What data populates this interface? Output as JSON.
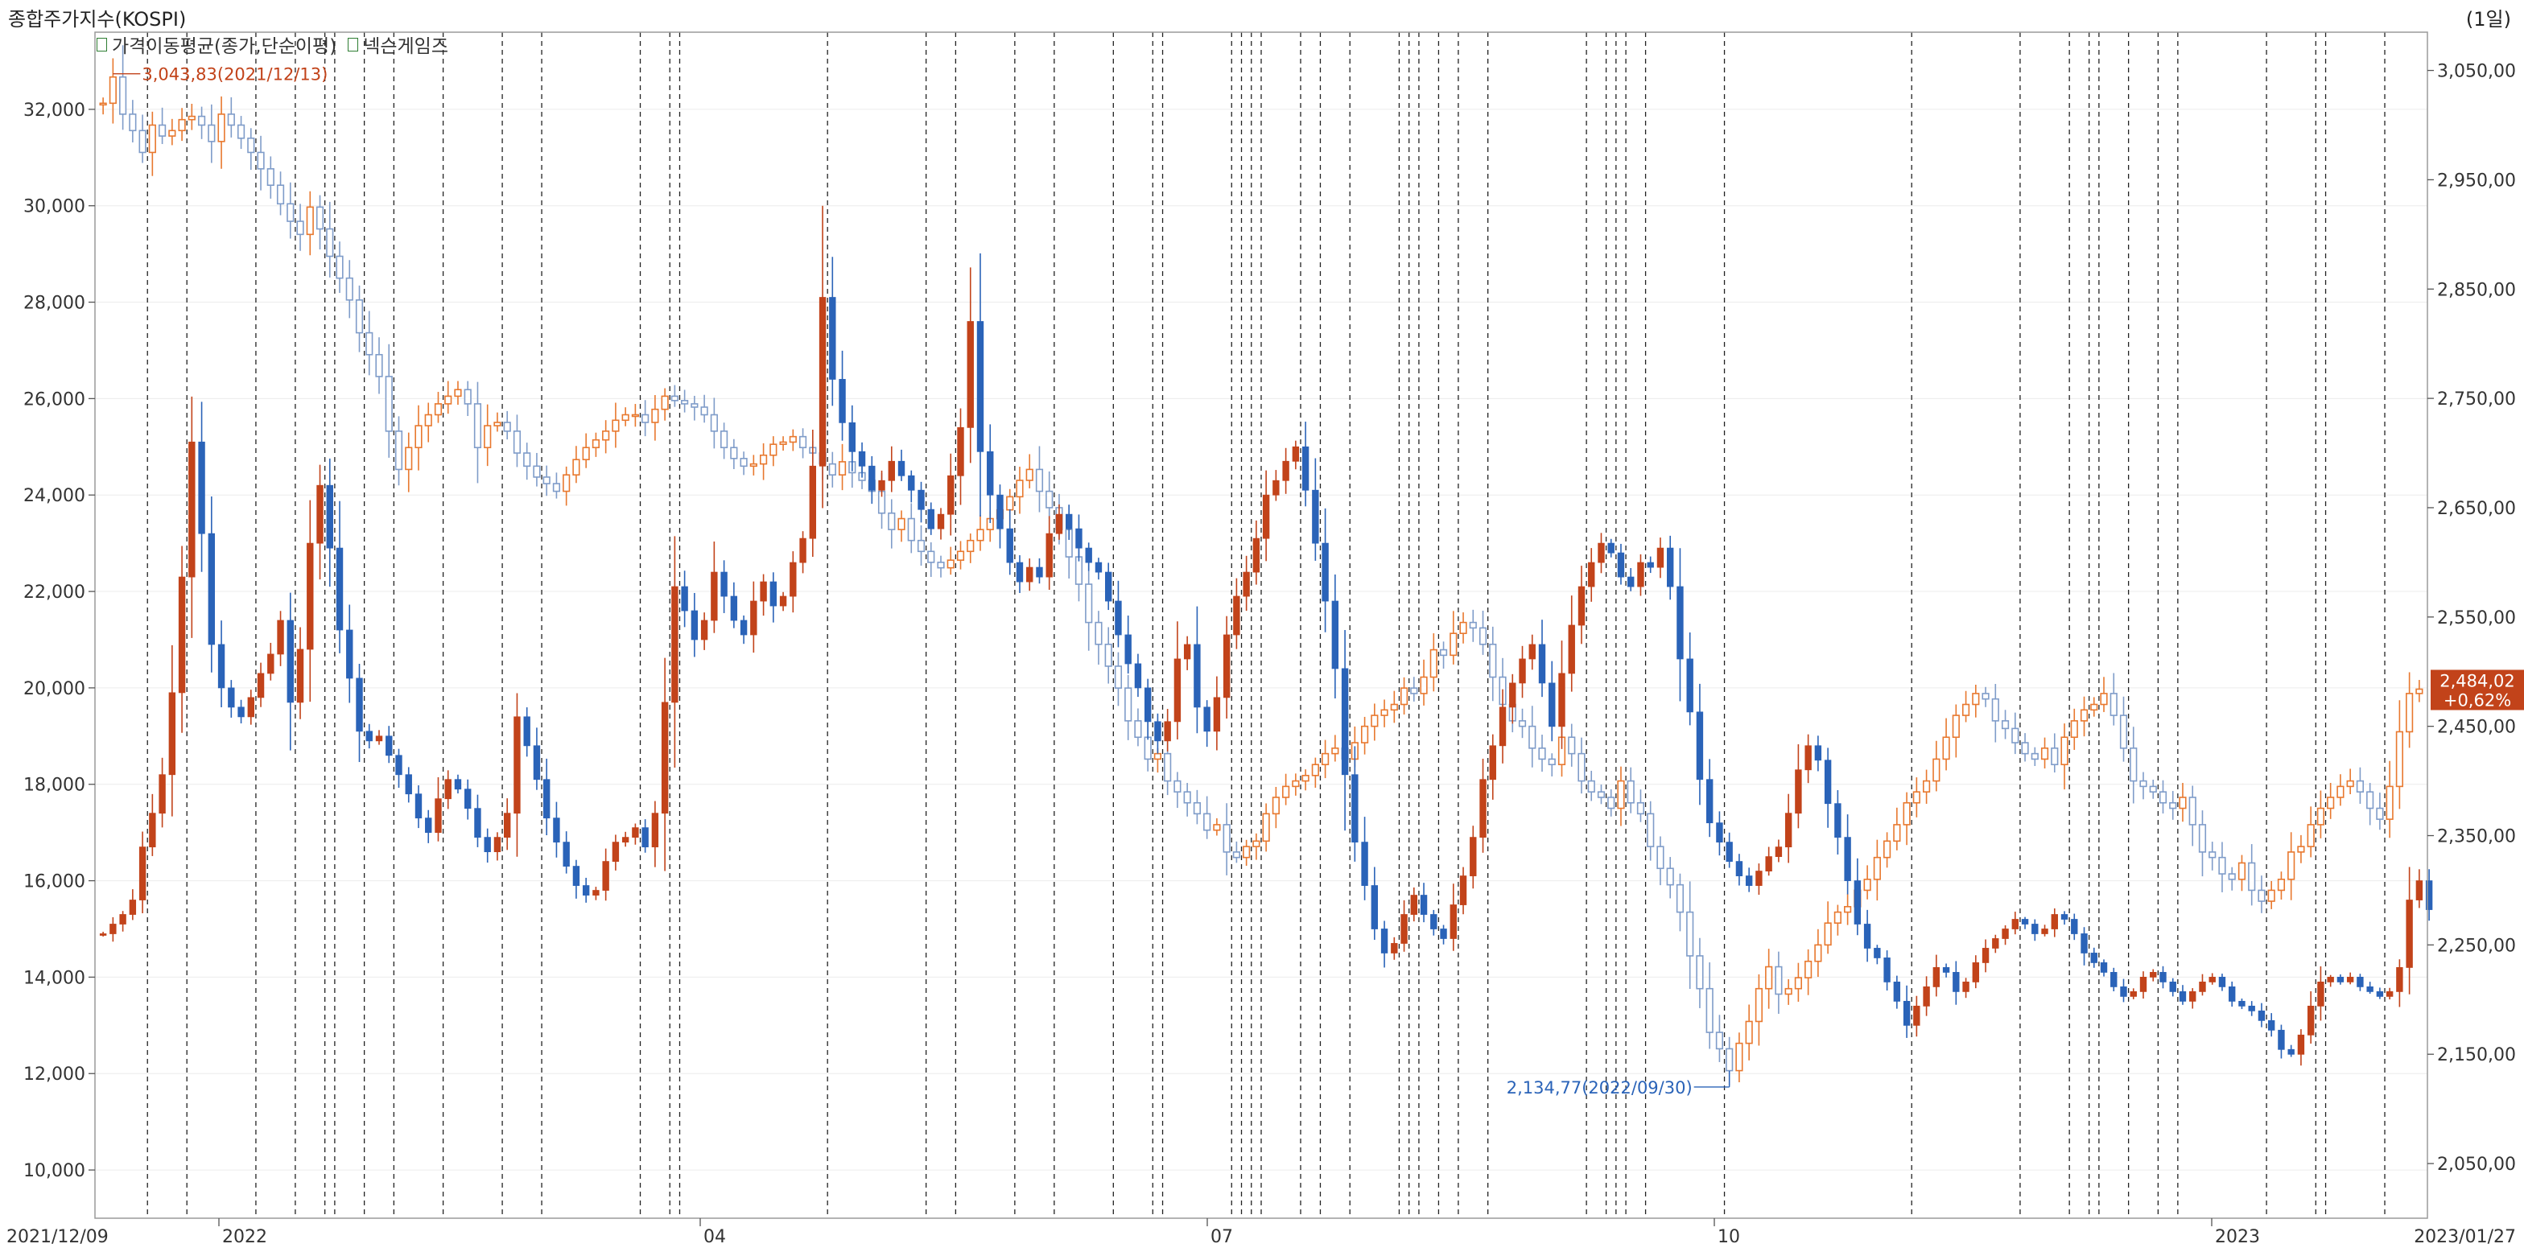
{
  "header": {
    "title": "종합주가지수(KOSPI)",
    "period": "(1일)",
    "legend": [
      {
        "label": "가격이동평균(종가,단순이평)",
        "color": "#2e7d32"
      },
      {
        "label": "넥슨게임즈",
        "color": "#2e7d32"
      }
    ]
  },
  "chart_data": {
    "type": "candlestick",
    "left_axis": {
      "ticks": [
        "32,000",
        "30,000",
        "28,000",
        "26,000",
        "24,000",
        "22,000",
        "20,000",
        "18,000",
        "16,000",
        "14,000",
        "12,000",
        "10,000"
      ],
      "ylim": [
        9000,
        33600
      ]
    },
    "right_axis": {
      "ticks": [
        "3,050,00",
        "2,950,00",
        "2,850,00",
        "2,750,00",
        "2,650,00",
        "2,550,00",
        "2,450,00",
        "2,350,00",
        "2,250,00",
        "2,150,00",
        "2,050,00"
      ],
      "ylim": [
        2000,
        3085
      ]
    },
    "x_axis": {
      "ticks": [
        "2021/12/09",
        "2022",
        "04",
        "07",
        "10",
        "2023",
        "2023/01/27"
      ]
    },
    "annotations": {
      "high": "3,043,83(2021/12/13)",
      "low": "2,134,77(2022/09/30)",
      "last_price": "2,484,02",
      "last_change": "+0,62%"
    },
    "series": [
      {
        "name": "종합주가지수(KOSPI)",
        "axis": "right",
        "close": [
          3020,
          3044,
          3010,
          2995,
          2975,
          3000,
          2990,
          2995,
          3005,
          3008,
          3000,
          2985,
          3010,
          3000,
          2988,
          2975,
          2960,
          2945,
          2928,
          2912,
          2900,
          2925,
          2905,
          2880,
          2860,
          2840,
          2810,
          2790,
          2770,
          2720,
          2685,
          2705,
          2725,
          2735,
          2745,
          2752,
          2758,
          2745,
          2705,
          2725,
          2728,
          2720,
          2700,
          2688,
          2678,
          2672,
          2665,
          2680,
          2694,
          2705,
          2712,
          2720,
          2730,
          2735,
          2735,
          2728,
          2740,
          2752,
          2748,
          2745,
          2742,
          2735,
          2720,
          2705,
          2695,
          2688,
          2690,
          2698,
          2708,
          2710,
          2715,
          2705,
          2700,
          2690,
          2680,
          2692,
          2682,
          2675,
          2665,
          2645,
          2630,
          2640,
          2620,
          2610,
          2600,
          2595,
          2602,
          2610,
          2620,
          2630,
          2640,
          2648,
          2660,
          2675,
          2685,
          2665,
          2650,
          2630,
          2605,
          2580,
          2545,
          2525,
          2505,
          2485,
          2455,
          2440,
          2420,
          2425,
          2400,
          2390,
          2380,
          2370,
          2355,
          2360,
          2335,
          2330,
          2340,
          2345,
          2370,
          2385,
          2395,
          2400,
          2405,
          2415,
          2425,
          2430,
          2420,
          2435,
          2450,
          2460,
          2465,
          2470,
          2485,
          2480,
          2495,
          2520,
          2515,
          2535,
          2545,
          2540,
          2525,
          2495,
          2470,
          2455,
          2450,
          2430,
          2420,
          2415,
          2440,
          2425,
          2400,
          2390,
          2385,
          2375,
          2400,
          2380,
          2370,
          2340,
          2320,
          2305,
          2280,
          2240,
          2210,
          2170,
          2155,
          2135,
          2160,
          2180,
          2210,
          2230,
          2205,
          2210,
          2220,
          2235,
          2250,
          2270,
          2280,
          2285,
          2300,
          2310,
          2330,
          2345,
          2360,
          2380,
          2390,
          2400,
          2420,
          2440,
          2460,
          2470,
          2480,
          2475,
          2455,
          2448,
          2435,
          2425,
          2420,
          2430,
          2415,
          2440,
          2455,
          2465,
          2470,
          2480,
          2460,
          2430,
          2400,
          2395,
          2390,
          2380,
          2375,
          2385,
          2360,
          2335,
          2330,
          2315,
          2310,
          2325,
          2300,
          2290,
          2300,
          2310,
          2335,
          2340,
          2360,
          2375,
          2385,
          2395,
          2400,
          2390,
          2375,
          2365,
          2395,
          2445,
          2480,
          2484
        ]
      },
      {
        "name": "넥슨게임즈",
        "axis": "left",
        "close": [
          14900,
          15100,
          15300,
          15600,
          16700,
          17400,
          18200,
          19900,
          22300,
          25100,
          23200,
          20900,
          20000,
          19600,
          19400,
          19800,
          20300,
          20700,
          21400,
          19700,
          20800,
          23000,
          24200,
          22900,
          21200,
          20200,
          19100,
          18900,
          19000,
          18600,
          18200,
          17800,
          17300,
          17000,
          17700,
          18100,
          17900,
          17500,
          16900,
          16600,
          16900,
          17400,
          19400,
          18800,
          18100,
          17300,
          16800,
          16300,
          15900,
          15700,
          15800,
          16400,
          16800,
          16900,
          17100,
          16700,
          17400,
          19700,
          22100,
          21600,
          21000,
          21400,
          22400,
          21900,
          21400,
          21100,
          21800,
          22200,
          21700,
          21900,
          22600,
          23100,
          24600,
          28100,
          26400,
          25500,
          24900,
          24600,
          24100,
          24300,
          24700,
          24400,
          24100,
          23700,
          23300,
          23600,
          24400,
          25400,
          27600,
          24900,
          24000,
          23300,
          22600,
          22200,
          22500,
          22300,
          23200,
          23600,
          23300,
          22900,
          22600,
          22400,
          21800,
          21100,
          20500,
          20000,
          19300,
          18900,
          19300,
          20600,
          20900,
          19600,
          19100,
          19800,
          21100,
          21900,
          22400,
          23100,
          24000,
          24300,
          24700,
          25000,
          24100,
          23000,
          21800,
          20400,
          18200,
          16800,
          15900,
          15000,
          14500,
          14700,
          15300,
          15700,
          15300,
          15000,
          14800,
          15500,
          16100,
          16900,
          18100,
          18800,
          19600,
          20100,
          20600,
          20900,
          20100,
          19200,
          20300,
          21300,
          22100,
          22600,
          23000,
          22800,
          22300,
          22100,
          22600,
          22500,
          22900,
          22100,
          20600,
          19500,
          18100,
          17200,
          16800,
          16400,
          16100,
          15900,
          16200,
          16500,
          16700,
          17400,
          18300,
          18800,
          18500,
          17600,
          16900,
          16000,
          15100,
          14600,
          14400,
          13900,
          13500,
          13000,
          13400,
          13800,
          14200,
          14100,
          13700,
          13900,
          14300,
          14600,
          14800,
          15000,
          15200,
          15100,
          14900,
          15000,
          15300,
          15200,
          14900,
          14500,
          14300,
          14100,
          13800,
          13600,
          13700,
          14000,
          14100,
          13900,
          13700,
          13500,
          13700,
          13900,
          14000,
          13800,
          13500,
          13400,
          13300,
          13100,
          12900,
          12500,
          12400,
          12800,
          13400,
          13900,
          14000,
          13900,
          14000,
          13800,
          13700,
          13600,
          13700,
          14200,
          15600,
          16000,
          15400
        ]
      }
    ]
  }
}
